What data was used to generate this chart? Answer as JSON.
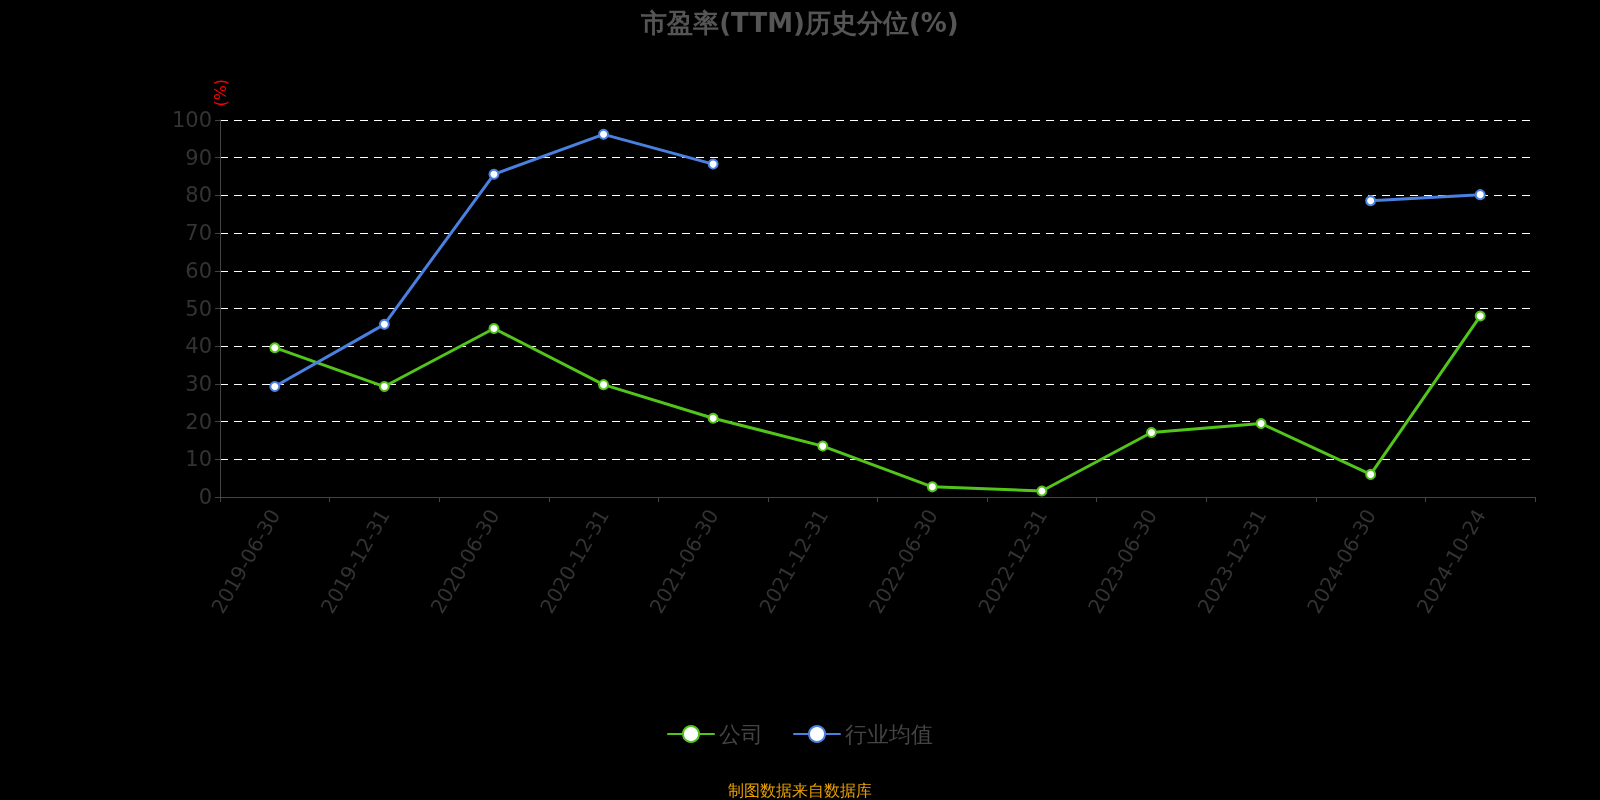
{
  "chart_data": {
    "type": "line",
    "title": "市盈率(TTM)历史分位(%)",
    "ylabel": "(%)",
    "categories": [
      "2019-06-30",
      "2019-12-31",
      "2020-06-30",
      "2020-12-31",
      "2021-06-30",
      "2021-12-31",
      "2022-06-30",
      "2022-12-31",
      "2023-06-30",
      "2023-12-31",
      "2024-06-30",
      "2024-10-24"
    ],
    "series": [
      {
        "name": "公司",
        "color": "#52c41a",
        "values": [
          39.6,
          29.3,
          44.7,
          29.8,
          20.9,
          13.5,
          2.7,
          1.6,
          17.1,
          19.5,
          6.0,
          48.0
        ]
      },
      {
        "name": "行业均值",
        "color": "#4a80e0",
        "values": [
          29.3,
          45.8,
          85.6,
          96.2,
          88.3,
          null,
          null,
          null,
          null,
          null,
          78.6,
          80.2
        ]
      }
    ],
    "ylim": [
      0,
      100
    ],
    "yticks": [
      0,
      10,
      20,
      30,
      40,
      50,
      60,
      70,
      80,
      90,
      100
    ],
    "grid": "y",
    "legend": "bottom",
    "marker": "circle",
    "line_style": "solid",
    "annotations": [
      "制图数据来自数据库"
    ]
  }
}
